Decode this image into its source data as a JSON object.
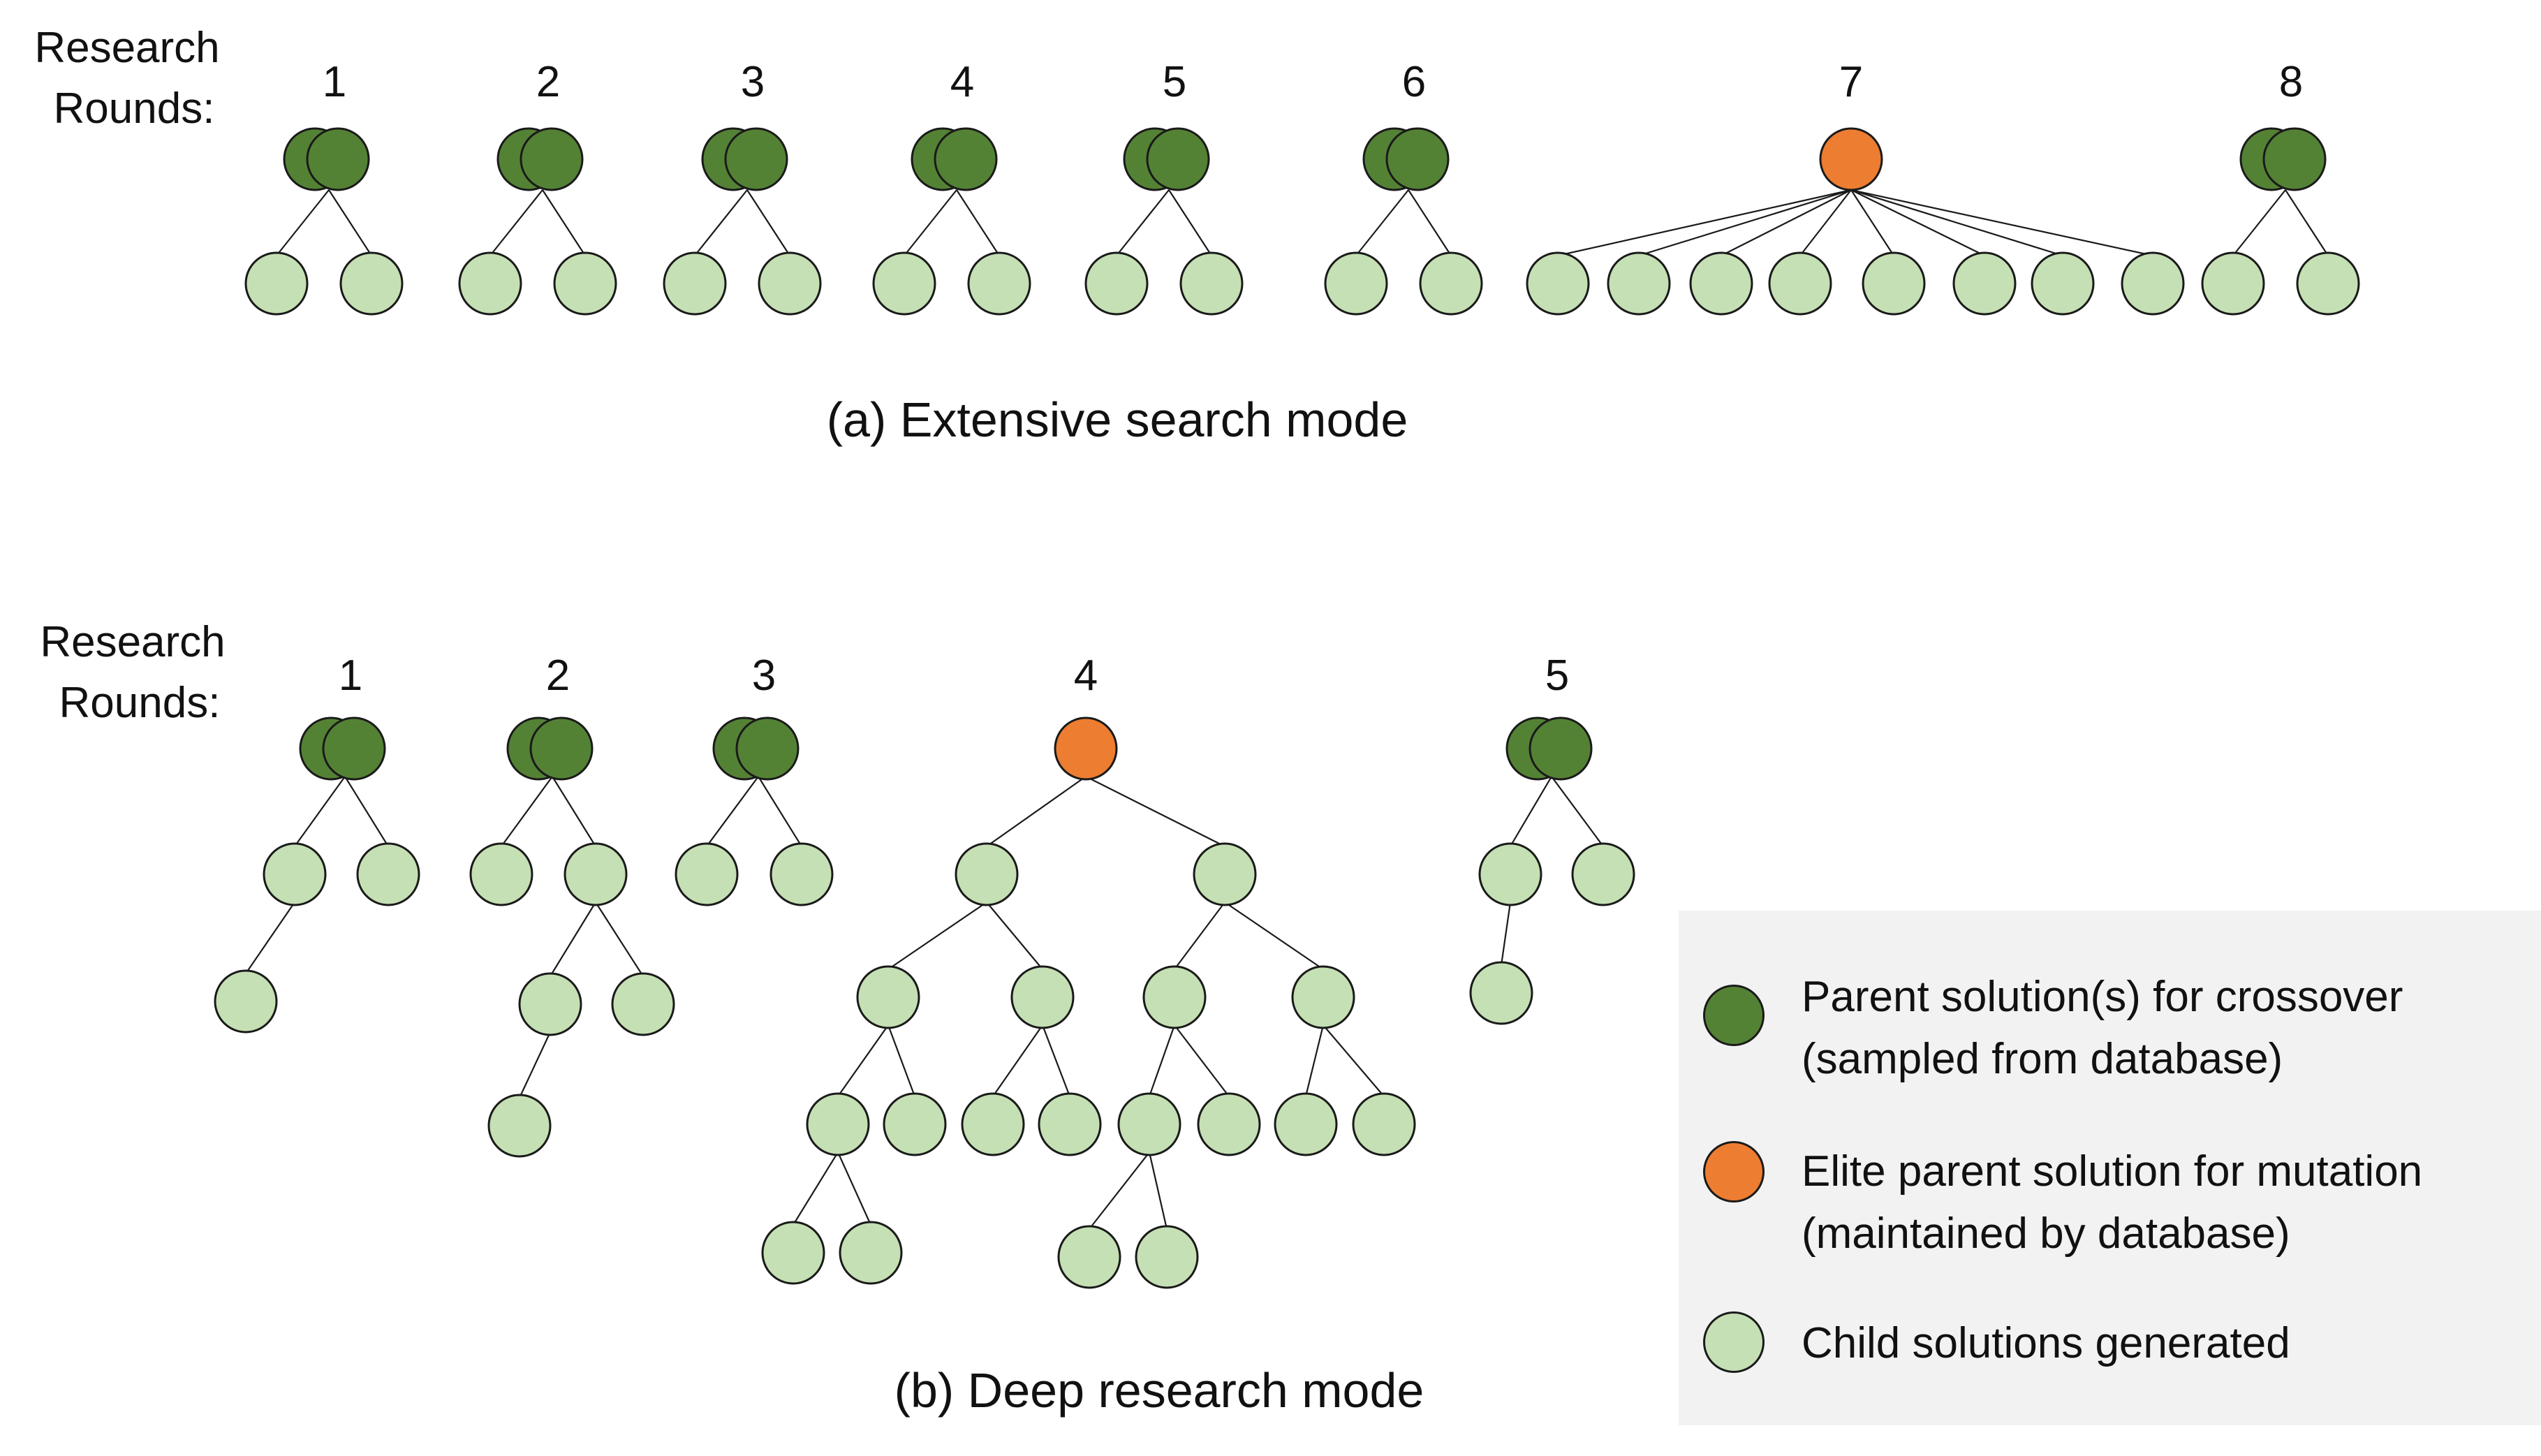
{
  "panel_a": {
    "rounds_label_line1": "Research",
    "rounds_label_line2": "Rounds:",
    "caption": "(a) Extensive search mode",
    "rounds": [
      "1",
      "2",
      "3",
      "4",
      "5",
      "6",
      "7",
      "8"
    ]
  },
  "panel_b": {
    "rounds_label_line1": "Research",
    "rounds_label_line2": "Rounds:",
    "caption": "(b) Deep research mode",
    "rounds": [
      "1",
      "2",
      "3",
      "4",
      "5"
    ]
  },
  "legend": {
    "crossover_line1": "Parent solution(s) for crossover",
    "crossover_line2": "(sampled from database)",
    "elite_line1": "Elite parent solution for mutation",
    "elite_line2": "(maintained by database)",
    "child": "Child solutions generated"
  },
  "colors": {
    "crossover_parent": "#548235",
    "elite_parent": "#ed7d31",
    "child": "#c5e0b4",
    "stroke": "#1a1a1a",
    "legend_bg": "#f2f2f2"
  }
}
